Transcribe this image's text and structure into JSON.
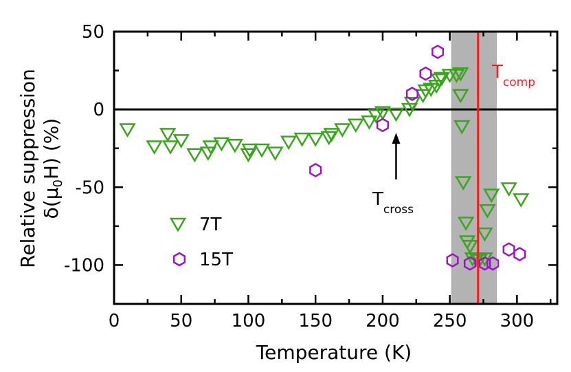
{
  "chart_data": {
    "type": "scatter",
    "title": "",
    "xlabel": "Temperature (K)",
    "ylabel_line1": "Relative suppression",
    "ylabel_line2_prefix": "δ(μ",
    "ylabel_line2_sub": "0",
    "ylabel_line2_suffix": "H) (%)",
    "xlim": [
      0,
      330
    ],
    "ylim": [
      -125,
      50
    ],
    "xticks": [
      0,
      50,
      100,
      150,
      200,
      250,
      300
    ],
    "xtick_labels": [
      "0",
      "50",
      "100",
      "150",
      "200",
      "250",
      "300"
    ],
    "yticks": [
      50,
      0,
      -50,
      -100
    ],
    "ytick_labels": [
      "50",
      "0",
      "-50",
      "-100"
    ],
    "zero_line": 0,
    "shaded_band": {
      "x_start": 251,
      "x_end": 285,
      "color": "#b3b3b3"
    },
    "comp_line": {
      "x": 271,
      "color": "#ff1a1a",
      "label_main": "T",
      "label_sub": "comp"
    },
    "cross_annotation": {
      "x": 210,
      "y_tip": -15,
      "y_tail": -45,
      "label_main": "T",
      "label_sub": "cross"
    },
    "legend_position": "bottom-left",
    "series": [
      {
        "name": "7T",
        "marker": "triangle-down",
        "color": "#3aa61e",
        "points": [
          [
            10,
            -13
          ],
          [
            30,
            -24
          ],
          [
            40,
            -16
          ],
          [
            42,
            -24
          ],
          [
            50,
            -20
          ],
          [
            60,
            -29
          ],
          [
            70,
            -28
          ],
          [
            72,
            -24
          ],
          [
            80,
            -22
          ],
          [
            90,
            -23
          ],
          [
            100,
            -29
          ],
          [
            101,
            -26
          ],
          [
            110,
            -26
          ],
          [
            120,
            -28
          ],
          [
            130,
            -21
          ],
          [
            140,
            -19
          ],
          [
            150,
            -19
          ],
          [
            160,
            -18
          ],
          [
            162,
            -16
          ],
          [
            170,
            -13
          ],
          [
            180,
            -10
          ],
          [
            190,
            -8
          ],
          [
            195,
            -4
          ],
          [
            200,
            -2
          ],
          [
            210,
            -3
          ],
          [
            220,
            0
          ],
          [
            222,
            4
          ],
          [
            230,
            9
          ],
          [
            232,
            12
          ],
          [
            236,
            13
          ],
          [
            240,
            15
          ],
          [
            242,
            19
          ],
          [
            244,
            20
          ],
          [
            250,
            22
          ],
          [
            255,
            22
          ],
          [
            258,
            23
          ],
          [
            258,
            9
          ],
          [
            259,
            -11
          ],
          [
            260,
            -47
          ],
          [
            262,
            -73
          ],
          [
            263,
            -85
          ],
          [
            265,
            -88
          ],
          [
            267,
            -96
          ],
          [
            270,
            -96
          ],
          [
            272,
            -97
          ],
          [
            276,
            -96
          ],
          [
            276,
            -80
          ],
          [
            278,
            -65
          ],
          [
            281,
            -55
          ],
          [
            294,
            -51
          ],
          [
            303,
            -58
          ]
        ]
      },
      {
        "name": "15T",
        "marker": "hexagon",
        "color": "#a012c8",
        "points": [
          [
            150,
            -39
          ],
          [
            200,
            -10
          ],
          [
            222,
            10
          ],
          [
            232,
            23
          ],
          [
            241,
            37
          ],
          [
            252,
            -97
          ],
          [
            265,
            -99
          ],
          [
            276,
            -99
          ],
          [
            282,
            -99
          ],
          [
            294,
            -90
          ],
          [
            302,
            -93
          ]
        ]
      }
    ]
  }
}
